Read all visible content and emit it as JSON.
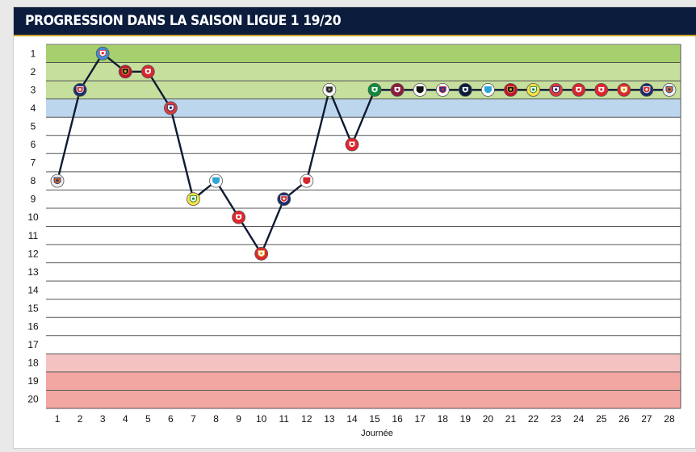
{
  "title": "PROGRESSION DANS LA SAISON LIGUE 1 19/20",
  "colors": {
    "title_bg": "#0b1c3d",
    "title_text": "#ffffff",
    "zone_champion": "#a6cf6e",
    "zone_ucl": "#c6df9c",
    "zone_europa": "#bcd6ee",
    "zone_relegation_playoff": "#f4c3c1",
    "zone_relegation": "#f2a7a3",
    "line": "#101a33"
  },
  "chart_data": {
    "type": "line",
    "title": "PROGRESSION DANS LA SAISON LIGUE 1 19/20",
    "xlabel": "Journée",
    "ylabel": "",
    "x": [
      1,
      2,
      3,
      4,
      5,
      6,
      7,
      8,
      9,
      10,
      11,
      12,
      13,
      14,
      15,
      16,
      17,
      18,
      19,
      20,
      21,
      22,
      23,
      24,
      25,
      26,
      27,
      28
    ],
    "y_ticks": [
      1,
      2,
      3,
      4,
      5,
      6,
      7,
      8,
      9,
      10,
      11,
      12,
      13,
      14,
      15,
      16,
      17,
      18,
      19,
      20
    ],
    "ylim": [
      20,
      1
    ],
    "y_inverted": true,
    "grid": true,
    "series": [
      {
        "values": [
          8,
          3,
          1,
          2,
          2,
          4,
          9,
          8,
          10,
          12,
          9,
          8,
          3,
          6,
          3,
          3,
          3,
          3,
          3,
          3,
          3,
          3,
          3,
          3,
          3,
          3,
          3,
          3
        ]
      }
    ],
    "markers": [
      {
        "journee": 1,
        "icon": "montpellier-crest-icon"
      },
      {
        "journee": 2,
        "icon": "psg-crest-icon"
      },
      {
        "journee": 3,
        "icon": "strasbourg-crest-icon"
      },
      {
        "journee": 4,
        "icon": "nice-crest-icon"
      },
      {
        "journee": 5,
        "icon": "brest-crest-icon"
      },
      {
        "journee": 6,
        "icon": "lille-crest-icon"
      },
      {
        "journee": 7,
        "icon": "nantes-crest-icon"
      },
      {
        "journee": 8,
        "icon": "marseille-crest-icon"
      },
      {
        "journee": 9,
        "icon": "reims-crest-icon"
      },
      {
        "journee": 10,
        "icon": "monaco-crest-icon"
      },
      {
        "journee": 11,
        "icon": "psg-crest-icon"
      },
      {
        "journee": 12,
        "icon": "dijon-crest-icon"
      },
      {
        "journee": 13,
        "icon": "amiens-crest-icon"
      },
      {
        "journee": 14,
        "icon": "nimes-crest-icon"
      },
      {
        "journee": 15,
        "icon": "saint-etienne-crest-icon"
      },
      {
        "journee": 16,
        "icon": "metz-crest-icon"
      },
      {
        "journee": 17,
        "icon": "angers-crest-icon"
      },
      {
        "journee": 18,
        "icon": "lyon-crest-icon"
      },
      {
        "journee": 19,
        "icon": "bordeaux-crest-icon"
      },
      {
        "journee": 20,
        "icon": "marseille-crest-icon"
      },
      {
        "journee": 21,
        "icon": "nice-crest-icon"
      },
      {
        "journee": 22,
        "icon": "nantes-crest-icon"
      },
      {
        "journee": 23,
        "icon": "lille-crest-icon"
      },
      {
        "journee": 24,
        "icon": "brest-crest-icon"
      },
      {
        "journee": 25,
        "icon": "reims-crest-icon"
      },
      {
        "journee": 26,
        "icon": "monaco-crest-icon"
      },
      {
        "journee": 27,
        "icon": "psg-crest-icon"
      },
      {
        "journee": 28,
        "icon": "montpellier-crest-icon"
      }
    ],
    "zones": [
      {
        "from": 1,
        "to": 1,
        "color": "#a6cf6e"
      },
      {
        "from": 2,
        "to": 3,
        "color": "#c6df9c"
      },
      {
        "from": 4,
        "to": 4,
        "color": "#bcd6ee"
      },
      {
        "from": 18,
        "to": 18,
        "color": "#f4c3c1"
      },
      {
        "from": 19,
        "to": 20,
        "color": "#f2a7a3"
      }
    ]
  },
  "crest_colors": {
    "montpellier-crest-icon": [
      "#f0f0f0",
      "#e2672a",
      "#1b3a73"
    ],
    "psg-crest-icon": [
      "#1b2f6b",
      "#d8262e",
      "#ffffff"
    ],
    "strasbourg-crest-icon": [
      "#3a8fd8",
      "#ffffff",
      "#d8262e"
    ],
    "nice-crest-icon": [
      "#c8102e",
      "#111111",
      "#d4a72c"
    ],
    "brest-crest-icon": [
      "#d8262e",
      "#ffffff",
      "#d8262e"
    ],
    "lille-crest-icon": [
      "#e03a3e",
      "#ffffff",
      "#1b2f6b"
    ],
    "nantes-crest-icon": [
      "#fde047",
      "#ffffff",
      "#0f8a3c"
    ],
    "marseille-crest-icon": [
      "#ffffff",
      "#2fa5d8",
      "#2fa5d8"
    ],
    "reims-crest-icon": [
      "#e0262e",
      "#ffffff",
      "#e0262e"
    ],
    "monaco-crest-icon": [
      "#e0262e",
      "#ffffff",
      "#d4a72c"
    ],
    "dijon-crest-icon": [
      "#ffffff",
      "#d8262e",
      "#d8262e"
    ],
    "amiens-crest-icon": [
      "#ffffff",
      "#222222",
      "#888888"
    ],
    "nimes-crest-icon": [
      "#e0262e",
      "#ffffff",
      "#e0262e"
    ],
    "saint-etienne-crest-icon": [
      "#0f8a3c",
      "#ffffff",
      "#0f8a3c"
    ],
    "metz-crest-icon": [
      "#8c1d3b",
      "#ffffff",
      "#8c1d3b"
    ],
    "angers-crest-icon": [
      "#ffffff",
      "#111111",
      "#111111"
    ],
    "lyon-crest-icon": [
      "#ffffff",
      "#1b3a8c",
      "#d8262e"
    ],
    "bordeaux-crest-icon": [
      "#0b1c3d",
      "#ffffff",
      "#0b1c3d"
    ]
  }
}
